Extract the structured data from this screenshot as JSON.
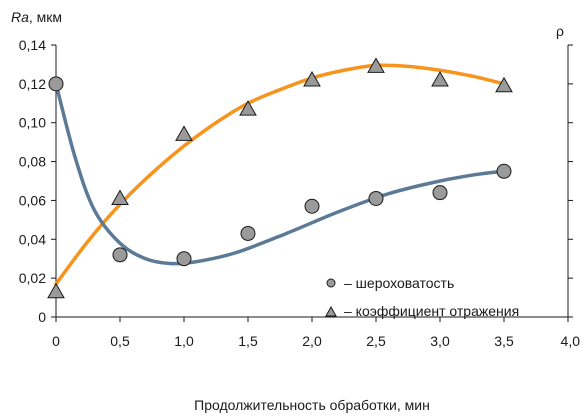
{
  "chart_data": {
    "type": "scatter",
    "ylabel_left": "Ra, мкм",
    "ylabel_right": "ρ",
    "xlabel": "Продолжительность обработки, мин",
    "xlim": [
      0,
      4.0
    ],
    "ylim_left": [
      0,
      0.14
    ],
    "x_ticks": [
      "0",
      "0,5",
      "1,0",
      "1,5",
      "2,0",
      "2,5",
      "3,0",
      "3,5",
      "4,0"
    ],
    "y_ticks": [
      "0",
      "0,02",
      "0,04",
      "0,06",
      "0,08",
      "0,10",
      "0,12",
      "0,14"
    ],
    "grid": false,
    "legend_position": "lower-right",
    "series": [
      {
        "name": "шероховатость",
        "marker": "circle",
        "color": "#5b7a96",
        "points": [
          [
            0,
            0.12
          ],
          [
            0.5,
            0.032
          ],
          [
            1.0,
            0.03
          ],
          [
            1.5,
            0.043
          ],
          [
            2.0,
            0.057
          ],
          [
            2.5,
            0.061
          ],
          [
            3.0,
            0.064
          ],
          [
            3.5,
            0.075
          ]
        ],
        "curve": [
          [
            0,
            0.12
          ],
          [
            0.15,
            0.082
          ],
          [
            0.3,
            0.055
          ],
          [
            0.5,
            0.038
          ],
          [
            0.7,
            0.03
          ],
          [
            0.9,
            0.0275
          ],
          [
            1.1,
            0.0285
          ],
          [
            1.4,
            0.033
          ],
          [
            1.8,
            0.043
          ],
          [
            2.2,
            0.054
          ],
          [
            2.6,
            0.0635
          ],
          [
            3.0,
            0.07
          ],
          [
            3.3,
            0.0735
          ],
          [
            3.5,
            0.075
          ]
        ]
      },
      {
        "name": "коэффициент отражения",
        "marker": "triangle",
        "color": "#f7941d",
        "points_left_units": [
          [
            0,
            0.013
          ],
          [
            0.5,
            0.061
          ],
          [
            1.0,
            0.094
          ],
          [
            1.5,
            0.107
          ],
          [
            2.0,
            0.122
          ],
          [
            2.5,
            0.129
          ],
          [
            3.0,
            0.122
          ],
          [
            3.5,
            0.119
          ]
        ],
        "curve_left_units": [
          [
            0,
            0.017
          ],
          [
            0.25,
            0.039
          ],
          [
            0.5,
            0.058
          ],
          [
            0.75,
            0.074
          ],
          [
            1.0,
            0.088
          ],
          [
            1.25,
            0.1
          ],
          [
            1.5,
            0.11
          ],
          [
            1.75,
            0.117
          ],
          [
            2.0,
            0.123
          ],
          [
            2.25,
            0.127
          ],
          [
            2.5,
            0.1295
          ],
          [
            2.75,
            0.129
          ],
          [
            3.0,
            0.127
          ],
          [
            3.25,
            0.124
          ],
          [
            3.5,
            0.12
          ]
        ]
      }
    ]
  },
  "legend": {
    "roughness_label": "– шероховатость",
    "reflect_label": "– коэффициент отражения"
  }
}
